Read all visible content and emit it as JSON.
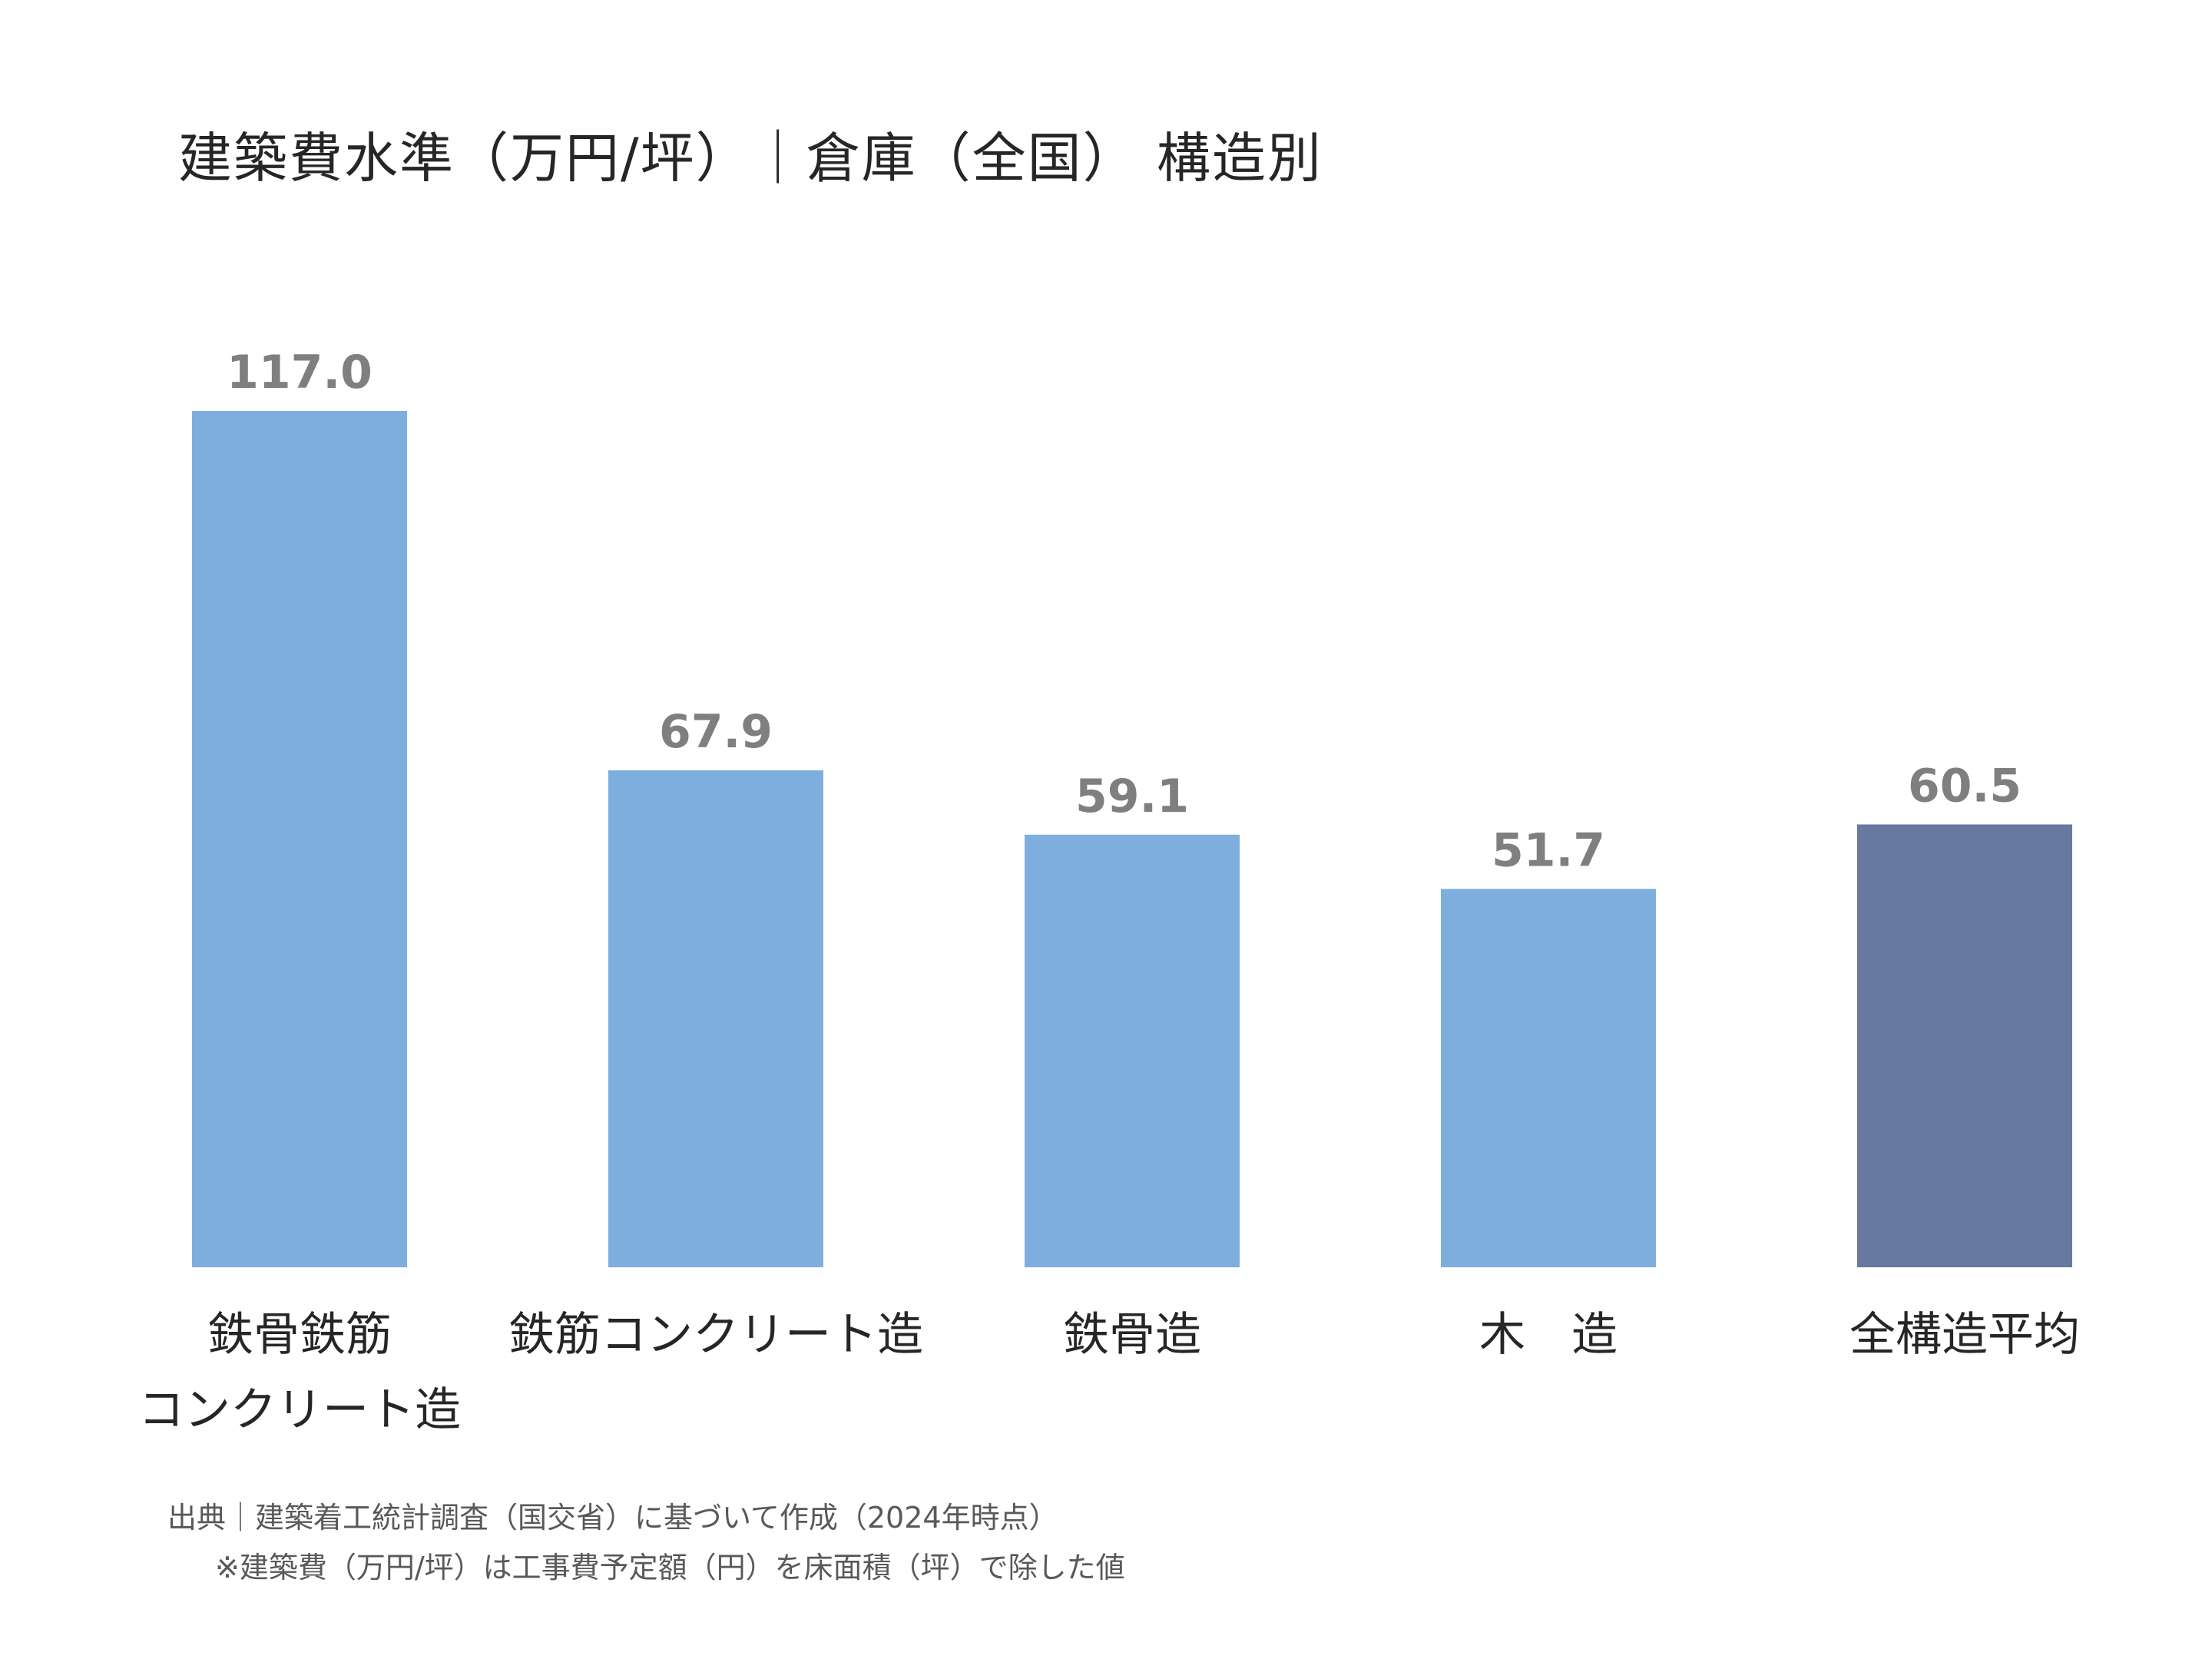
{
  "chart_data": {
    "type": "bar",
    "title": "建築費水準（万円/坪）｜倉庫（全国） 構造別",
    "categories": [
      [
        "鉄骨鉄筋",
        "コンクリート造"
      ],
      [
        "鉄筋コンクリート造"
      ],
      [
        "鉄骨造"
      ],
      [
        "木　造"
      ],
      [
        "全構造平均"
      ]
    ],
    "values": [
      117.0,
      67.9,
      59.1,
      51.7,
      60.5
    ],
    "value_labels": [
      "117.0",
      "67.9",
      "59.1",
      "51.7",
      "60.5"
    ],
    "colors": [
      "#7eaedd",
      "#7eaedd",
      "#7eaedd",
      "#7eaedd",
      "#68799f"
    ],
    "label_color": "#7f7f7f",
    "ylim": [
      0,
      117.0
    ],
    "grid": false,
    "legend": "none"
  },
  "notes": {
    "source": "出典｜建築着工統計調査（国交省）に基づいて作成（2024年時点）",
    "footnote": "※建築費（万円/坪）は工事費予定額（円）を床面積（坪）で除した値"
  }
}
